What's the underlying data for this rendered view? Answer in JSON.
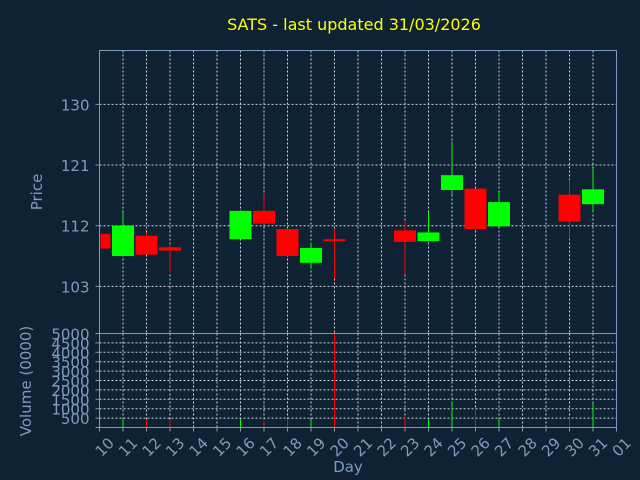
{
  "chart_data": {
    "type": "candlestick",
    "title": "SATS - last updated 31/03/2026",
    "ylabel": "Price",
    "volume_ylabel": "Volume (0000)",
    "xlabel": "Day",
    "x_tick_labels": [
      "10",
      "11",
      "12",
      "13",
      "14",
      "15",
      "16",
      "17",
      "18",
      "19",
      "20",
      "21",
      "22",
      "23",
      "24",
      "25",
      "26",
      "27",
      "28",
      "29",
      "30",
      "31",
      "01"
    ],
    "price_ticks": [
      103,
      112,
      121,
      130
    ],
    "price_ylim": [
      96,
      138
    ],
    "volume_ticks": [
      0,
      500,
      1000,
      1500,
      2000,
      2500,
      3000,
      3500,
      4000,
      4500,
      5000
    ],
    "volume_tick_labels": [
      "",
      "500",
      "1000",
      "1500",
      "2000",
      "2500",
      "3000",
      "3500",
      "4000",
      "4500",
      "5000"
    ],
    "volume_ylim": [
      0,
      5000
    ],
    "colors": {
      "up": "#00ff00",
      "down": "#ff0000",
      "title": "#ffff00",
      "axis": "#7d9cbc",
      "background": "#0f2233"
    },
    "candles": [
      {
        "day": "10",
        "open": 110.8,
        "high": 110.8,
        "low": 108.6,
        "close": 108.6,
        "volume": 50
      },
      {
        "day": "11",
        "open": 107.5,
        "high": 114.0,
        "low": 107.5,
        "close": 112.0,
        "volume": 500
      },
      {
        "day": "12",
        "open": 110.5,
        "high": 111.0,
        "low": 107.7,
        "close": 107.7,
        "volume": 400
      },
      {
        "day": "13",
        "open": 108.8,
        "high": 109.3,
        "low": 105.0,
        "close": 108.3,
        "volume": 400
      },
      {
        "day": "16",
        "open": 110.0,
        "high": 114.2,
        "low": 110.0,
        "close": 114.2,
        "volume": 450
      },
      {
        "day": "17",
        "open": 114.2,
        "high": 116.5,
        "low": 112.3,
        "close": 112.3,
        "volume": 350
      },
      {
        "day": "18",
        "open": 111.5,
        "high": 111.5,
        "low": 107.5,
        "close": 107.5,
        "volume": 450
      },
      {
        "day": "19",
        "open": 106.5,
        "high": 109.5,
        "low": 105.6,
        "close": 108.7,
        "volume": 450
      },
      {
        "day": "20",
        "open": 110.0,
        "high": 111.5,
        "low": 104.1,
        "close": 109.7,
        "volume": 5000
      },
      {
        "day": "23",
        "open": 111.3,
        "high": 112.8,
        "low": 104.7,
        "close": 109.6,
        "volume": 600
      },
      {
        "day": "24",
        "open": 109.7,
        "high": 114.0,
        "low": 109.7,
        "close": 111.0,
        "volume": 400
      },
      {
        "day": "25",
        "open": 117.3,
        "high": 124.5,
        "low": 116.7,
        "close": 119.5,
        "volume": 1350
      },
      {
        "day": "26",
        "open": 117.5,
        "high": 117.5,
        "low": 111.3,
        "close": 111.5,
        "volume": 1000
      },
      {
        "day": "27",
        "open": 111.9,
        "high": 117.0,
        "low": 111.9,
        "close": 115.5,
        "volume": 550
      },
      {
        "day": "30",
        "open": 116.6,
        "high": 118.8,
        "low": 110.0,
        "close": 112.6,
        "volume": 500
      },
      {
        "day": "31",
        "open": 115.2,
        "high": 120.5,
        "low": 114.0,
        "close": 117.4,
        "volume": 1300
      }
    ]
  }
}
